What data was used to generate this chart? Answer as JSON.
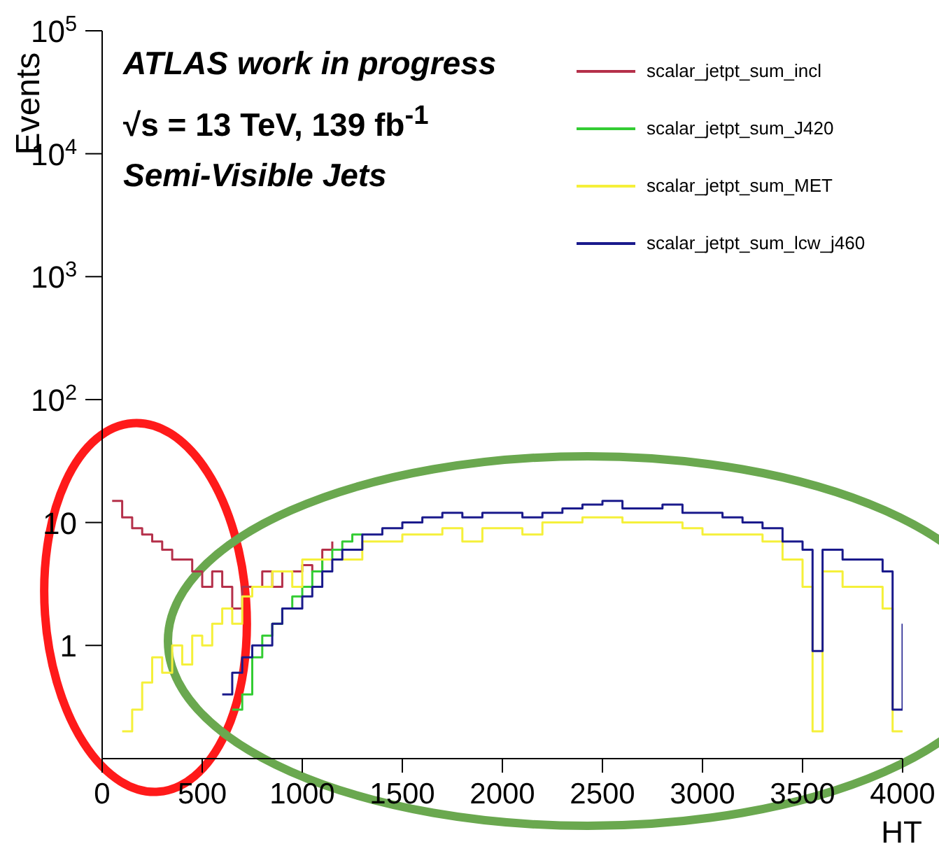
{
  "chart_data": {
    "type": "step",
    "xlabel": "HT",
    "ylabel": "Events",
    "log": "y",
    "xlim": [
      0,
      4000
    ],
    "xticks": [
      0,
      500,
      1000,
      1500,
      2000,
      2500,
      3000,
      3500,
      4000
    ],
    "ylim": [
      0.12,
      100000
    ],
    "yticks": [
      1,
      10,
      {
        "value": 100,
        "label": "10$^{2}$"
      },
      {
        "value": 1000,
        "label": "10$^{3}$"
      },
      {
        "value": 10000,
        "label": "10$^{4}$"
      },
      {
        "value": 100000,
        "label": "10$^{5}$"
      }
    ],
    "legend": "top right",
    "marker": "none",
    "annotations": [
      "ATLAS work in progress",
      "√s = 13 TeV, 139 fb$^{-1}$",
      "Semi-Visible Jets"
    ],
    "series": [
      {
        "name": "scalar_jetpt_sum_incl",
        "color": "#b5304a",
        "x": [
          50,
          100,
          150,
          200,
          250,
          300,
          350,
          400,
          450,
          500,
          550,
          600,
          650,
          700,
          750,
          800,
          850,
          900,
          950,
          1000,
          1050,
          1100,
          1150
        ],
        "values": [
          15,
          11,
          9,
          8,
          7,
          6,
          5,
          5,
          4,
          3,
          4,
          3,
          2,
          3,
          3,
          4,
          3,
          4,
          4,
          4.5,
          4,
          6,
          7
        ]
      },
      {
        "name": "scalar_jetpt_sum_J420",
        "color": "#33cc33",
        "x": [
          650,
          700,
          750,
          800,
          850,
          900,
          950,
          1000,
          1050,
          1100,
          1150,
          1200,
          1250,
          1300
        ],
        "values": [
          0.3,
          0.4,
          0.8,
          1.2,
          1.5,
          2,
          2.5,
          3,
          4,
          5,
          6,
          7,
          8,
          8
        ]
      },
      {
        "name": "scalar_jetpt_sum_MET",
        "color": "#f5f03a",
        "x": [
          100,
          150,
          200,
          250,
          300,
          350,
          400,
          450,
          500,
          550,
          600,
          650,
          700,
          750,
          800,
          850,
          900,
          950,
          1000,
          1100,
          1200,
          1300,
          1400,
          1500,
          1600,
          1700,
          1800,
          1900,
          2000,
          2100,
          2200,
          2300,
          2400,
          2500,
          2600,
          2700,
          2800,
          2900,
          3000,
          3100,
          3200,
          3300,
          3400,
          3500,
          3550,
          3600,
          3700,
          3800,
          3900,
          3950,
          4000
        ],
        "values": [
          0.2,
          0.3,
          0.5,
          0.8,
          0.6,
          1,
          0.7,
          1.2,
          1,
          1.5,
          2,
          1.5,
          2.5,
          3,
          3,
          4,
          4,
          3,
          5,
          5,
          5,
          7,
          7,
          8,
          8,
          9,
          7,
          9,
          9,
          8,
          10,
          10,
          11,
          11,
          10,
          10,
          10,
          9,
          8,
          8,
          8,
          7,
          5,
          3,
          0.2,
          4,
          3,
          3,
          2,
          0.2,
          0.2
        ]
      },
      {
        "name": "scalar_jetpt_sum_lcw_j460",
        "color": "#1a1a8c",
        "x": [
          600,
          650,
          700,
          750,
          800,
          850,
          900,
          950,
          1000,
          1050,
          1100,
          1150,
          1200,
          1300,
          1400,
          1500,
          1600,
          1700,
          1800,
          1900,
          2000,
          2100,
          2200,
          2300,
          2400,
          2500,
          2600,
          2700,
          2800,
          2900,
          3000,
          3100,
          3200,
          3300,
          3400,
          3500,
          3550,
          3600,
          3700,
          3800,
          3900,
          3950,
          4000
        ],
        "values": [
          0.4,
          0.6,
          0.8,
          1,
          1,
          1.5,
          2,
          2,
          2.5,
          3,
          4,
          5,
          6,
          8,
          9,
          10,
          11,
          12,
          11,
          12,
          12,
          11,
          12,
          13,
          14,
          15,
          13,
          13,
          14,
          12,
          12,
          11,
          10,
          9,
          7,
          6,
          0.9,
          6,
          5,
          5,
          4,
          0.3,
          1.5
        ]
      }
    ]
  }
}
